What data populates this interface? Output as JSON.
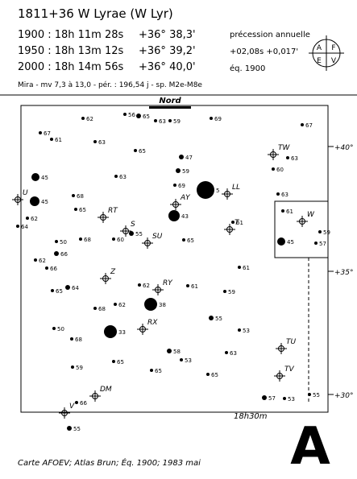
{
  "header": {
    "title": "1811+36 W Lyrae (W Lyr)",
    "positions": [
      [
        "1900 : 18h 11m 28s",
        "+36° 38,3'"
      ],
      [
        "1950 : 18h 13m 12s",
        "+36° 39,2'"
      ],
      [
        "2000 : 18h 14m 56s",
        "+36° 40,0'"
      ]
    ],
    "precession_title": "précession annuelle",
    "precession": "+02,08s +0,017'",
    "equinox": "éq. 1900",
    "logo": [
      "A",
      "F",
      "E",
      "V"
    ],
    "info": "Mira - mv 7,3 à 13,0 - pér. : 196,54 j - sp. M2e-M8e"
  },
  "chart": {
    "north": "Nord",
    "dec_labels": [
      "+40°",
      "+35°",
      "+30°"
    ],
    "ra_label": "18h30m",
    "variables": [
      "W",
      "TW",
      "AY",
      "LL",
      "T",
      "RT",
      "S",
      "SU",
      "Z",
      "RY",
      "RX",
      "TU",
      "TV",
      "DM",
      "V",
      "U"
    ],
    "stars": [
      "62",
      "56",
      "65",
      "63",
      "59",
      "69",
      "67",
      "61",
      "63",
      "65",
      "47",
      "59",
      "69",
      "45",
      "45",
      "62",
      "64",
      "63",
      "68",
      "65",
      "50",
      "66",
      "68",
      "5",
      "43",
      "55",
      "60",
      "65",
      "62",
      "66",
      "62",
      "68",
      "38",
      "33",
      "50",
      "68",
      "59",
      "65",
      "65",
      "58",
      "53",
      "55",
      "63",
      "65",
      "60",
      "63",
      "67",
      "63",
      "61",
      "45",
      "57",
      "59",
      "57",
      "53",
      "55",
      "61",
      "59",
      "61",
      "61",
      "66",
      "55",
      "64",
      "65",
      "62",
      "53"
    ]
  },
  "footer": {
    "caption": "Carte AFOEV; Atlas Brun; Éq. 1900; 1983 mai",
    "letter": "A"
  }
}
